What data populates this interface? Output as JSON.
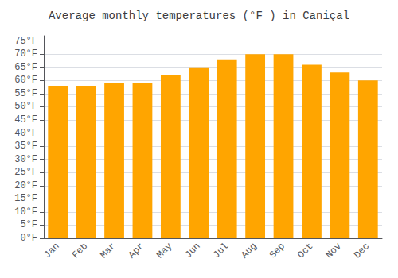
{
  "chart_data": {
    "type": "bar",
    "title": "Average monthly temperatures (°F ) in Caniçal",
    "categories": [
      "Jan",
      "Feb",
      "Mar",
      "Apr",
      "May",
      "Jun",
      "Jul",
      "Aug",
      "Sep",
      "Oct",
      "Nov",
      "Dec"
    ],
    "values": [
      58,
      58,
      59,
      59,
      62,
      65,
      68,
      70,
      70,
      66,
      63,
      60
    ],
    "color": "#FFA500",
    "ylim": [
      0,
      77
    ],
    "yticks": [
      {
        "value": 0,
        "label": "0°F"
      },
      {
        "value": 5,
        "label": "5°F"
      },
      {
        "value": 10,
        "label": "10°F"
      },
      {
        "value": 15,
        "label": "15°F"
      },
      {
        "value": 20,
        "label": "20°F"
      },
      {
        "value": 25,
        "label": "25°F"
      },
      {
        "value": 30,
        "label": "30°F"
      },
      {
        "value": 35,
        "label": "35°F"
      },
      {
        "value": 40,
        "label": "40°F"
      },
      {
        "value": 45,
        "label": "45°F"
      },
      {
        "value": 50,
        "label": "50°F"
      },
      {
        "value": 55,
        "label": "55°F"
      },
      {
        "value": 60,
        "label": "60°F"
      },
      {
        "value": 65,
        "label": "65°F"
      },
      {
        "value": 70,
        "label": "70°F"
      },
      {
        "value": 75,
        "label": "75°F"
      }
    ],
    "grid": true
  }
}
